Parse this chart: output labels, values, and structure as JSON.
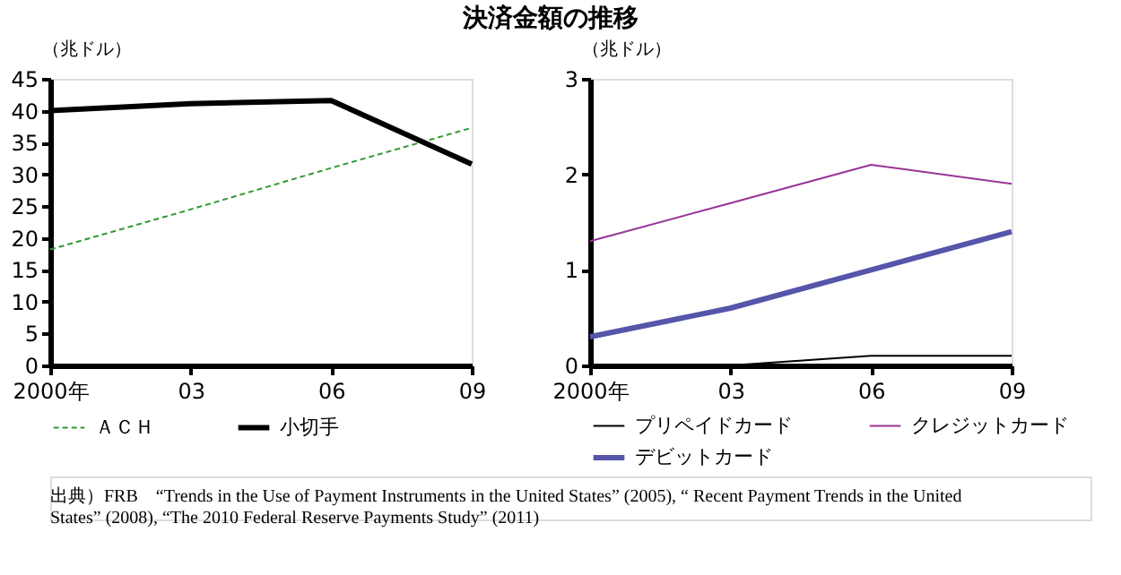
{
  "chart_data": [
    {
      "type": "line",
      "title": "決済金額の推移",
      "ylabel": "（兆ドル）",
      "categories": [
        "2000年",
        "03",
        "06",
        "09"
      ],
      "ylim": [
        0,
        45
      ],
      "yticks": [
        0,
        5,
        10,
        15,
        20,
        25,
        30,
        35,
        40,
        45
      ],
      "grid": false,
      "legend": "bottom",
      "marker": "none",
      "series": [
        {
          "name": "ＡＣＨ",
          "color": "#339933",
          "line_style": "dashed",
          "values": [
            18.2,
            24.5,
            31.0,
            37.3
          ]
        },
        {
          "name": "小切手",
          "color": "#000000",
          "line_style": "solid",
          "values": [
            40.0,
            41.1,
            41.6,
            31.6
          ]
        }
      ]
    },
    {
      "type": "line",
      "ylabel": "（兆ドル）",
      "categories": [
        "2000年",
        "03",
        "06",
        "09"
      ],
      "ylim": [
        0,
        3
      ],
      "yticks": [
        0,
        1,
        2,
        3
      ],
      "grid": false,
      "legend": "bottom",
      "marker": "none",
      "annotations": [
        "出典）FRB　“Trends in the Use of Payment Instruments in the United States” (2005), “ Recent Payment Trends in the United States” (2008), “The 2010 Federal Reserve Payments Study” (2011)"
      ],
      "series": [
        {
          "name": "プリペイドカード",
          "color": "#000000",
          "line_style": "solid",
          "values": [
            0,
            0,
            0.1,
            0.1
          ]
        },
        {
          "name": "クレジットカード",
          "color": "#993399",
          "line_style": "solid",
          "values": [
            1.3,
            1.7,
            2.1,
            1.9
          ]
        },
        {
          "name": "デビットカード",
          "color": "#5555aa",
          "line_style": "solid",
          "values": [
            0.3,
            0.6,
            1.0,
            1.4
          ]
        }
      ]
    }
  ]
}
